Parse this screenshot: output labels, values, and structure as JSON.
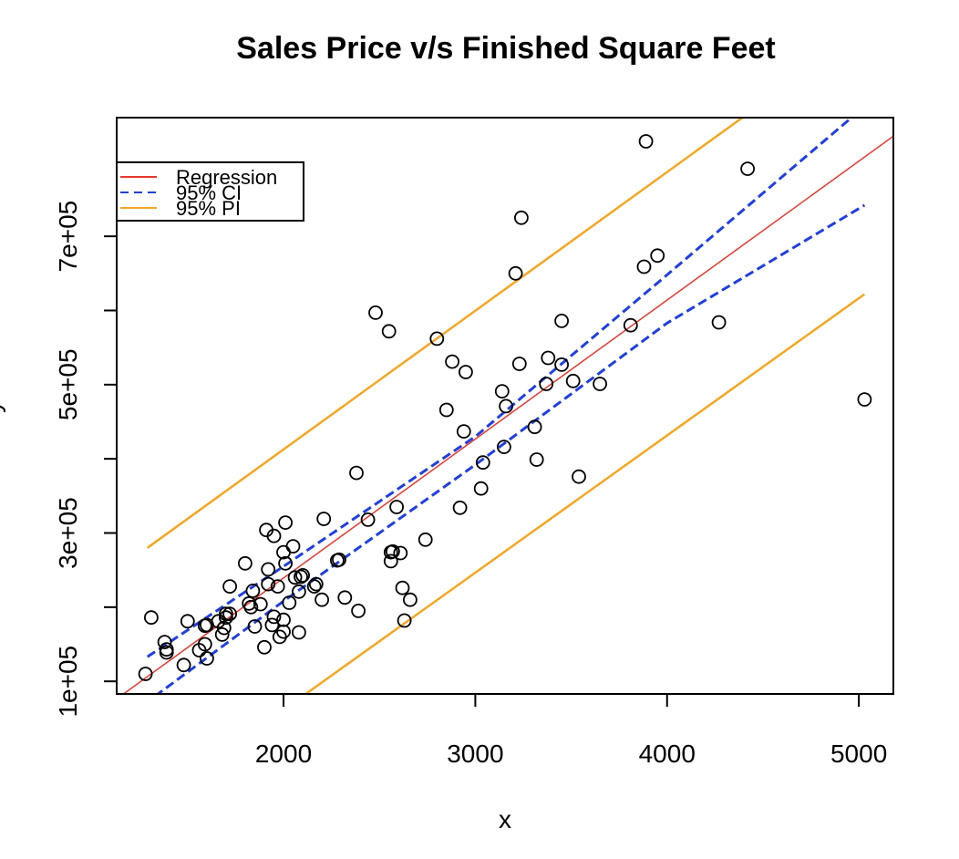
{
  "chart_data": {
    "type": "scatter",
    "title": "Sales Price v/s Finished Square Feet",
    "xlabel": "x",
    "ylabel": "y",
    "xlim": [
      1130,
      5180
    ],
    "ylim": [
      83000,
      860000
    ],
    "x_ticks": [
      2000,
      3000,
      4000,
      5000
    ],
    "x_tick_labels": [
      "2000",
      "3000",
      "4000",
      "5000"
    ],
    "y_ticks": [
      100000,
      200000,
      300000,
      400000,
      500000,
      600000,
      700000
    ],
    "y_tick_labels": [
      "1e+05",
      "3e+05",
      "5e+05",
      "7e+05"
    ],
    "y_labeled_ticks": [
      100000,
      300000,
      500000,
      700000
    ],
    "legend": {
      "placement": "top-left",
      "entries": [
        {
          "label": "Regression",
          "color": "#e8392f",
          "style": "solid"
        },
        {
          "label": "95% CI",
          "color": "#1f3fe0",
          "style": "dashed"
        },
        {
          "label": "95% PI",
          "color": "#f5a623",
          "style": "solid"
        }
      ]
    },
    "regression": {
      "x0": 1150,
      "y0": 80000,
      "x1": 5180,
      "y1": 835000
    },
    "ci_upper": [
      [
        1290,
        133000
      ],
      [
        2000,
        255000
      ],
      [
        3000,
        430000
      ],
      [
        4000,
        648000
      ],
      [
        5030,
        875000
      ]
    ],
    "ci_lower": [
      [
        1330,
        80000
      ],
      [
        2000,
        208000
      ],
      [
        3000,
        392000
      ],
      [
        4000,
        583000
      ],
      [
        5030,
        742000
      ]
    ],
    "pi_upper": [
      [
        1290,
        280000
      ],
      [
        4500,
        880000
      ]
    ],
    "pi_lower": [
      [
        2100,
        80000
      ],
      [
        5030,
        622000
      ]
    ],
    "points": [
      [
        1280,
        110000
      ],
      [
        1310,
        186000
      ],
      [
        1380,
        153000
      ],
      [
        1390,
        139000
      ],
      [
        1390,
        143000
      ],
      [
        1480,
        122000
      ],
      [
        1500,
        181000
      ],
      [
        1560,
        142000
      ],
      [
        1590,
        175000
      ],
      [
        1590,
        150000
      ],
      [
        1600,
        176000
      ],
      [
        1600,
        131000
      ],
      [
        1660,
        181000
      ],
      [
        1680,
        163000
      ],
      [
        1690,
        172000
      ],
      [
        1700,
        186000
      ],
      [
        1700,
        191000
      ],
      [
        1720,
        191000
      ],
      [
        1720,
        228000
      ],
      [
        1800,
        259000
      ],
      [
        1820,
        205000
      ],
      [
        1830,
        200000
      ],
      [
        1840,
        222000
      ],
      [
        1850,
        174000
      ],
      [
        1880,
        204000
      ],
      [
        1900,
        146000
      ],
      [
        1910,
        304000
      ],
      [
        1920,
        251000
      ],
      [
        1920,
        231000
      ],
      [
        1940,
        176000
      ],
      [
        1950,
        187000
      ],
      [
        1950,
        296000
      ],
      [
        1970,
        228000
      ],
      [
        1980,
        160000
      ],
      [
        2000,
        274000
      ],
      [
        2000,
        183000
      ],
      [
        2000,
        167000
      ],
      [
        2010,
        314000
      ],
      [
        2010,
        259000
      ],
      [
        2030,
        206000
      ],
      [
        2050,
        282000
      ],
      [
        2060,
        240000
      ],
      [
        2080,
        221000
      ],
      [
        2080,
        166000
      ],
      [
        2090,
        241000
      ],
      [
        2100,
        243000
      ],
      [
        2160,
        228000
      ],
      [
        2170,
        231000
      ],
      [
        2200,
        210000
      ],
      [
        2210,
        319000
      ],
      [
        2280,
        263000
      ],
      [
        2290,
        264000
      ],
      [
        2320,
        213000
      ],
      [
        2380,
        381000
      ],
      [
        2390,
        195000
      ],
      [
        2440,
        318000
      ],
      [
        2480,
        597000
      ],
      [
        2550,
        572000
      ],
      [
        2560,
        274000
      ],
      [
        2560,
        262000
      ],
      [
        2570,
        275000
      ],
      [
        2590,
        335000
      ],
      [
        2610,
        273000
      ],
      [
        2620,
        226000
      ],
      [
        2630,
        182000
      ],
      [
        2660,
        210000
      ],
      [
        2740,
        291000
      ],
      [
        2800,
        562000
      ],
      [
        2850,
        466000
      ],
      [
        2880,
        531000
      ],
      [
        2920,
        334000
      ],
      [
        2940,
        437000
      ],
      [
        2950,
        517000
      ],
      [
        3030,
        360000
      ],
      [
        3040,
        395000
      ],
      [
        3140,
        491000
      ],
      [
        3150,
        416000
      ],
      [
        3160,
        471000
      ],
      [
        3210,
        650000
      ],
      [
        3230,
        528000
      ],
      [
        3240,
        725000
      ],
      [
        3310,
        443000
      ],
      [
        3320,
        399000
      ],
      [
        3370,
        501000
      ],
      [
        3380,
        536000
      ],
      [
        3450,
        527000
      ],
      [
        3450,
        586000
      ],
      [
        3510,
        505000
      ],
      [
        3540,
        376000
      ],
      [
        3650,
        501000
      ],
      [
        3810,
        580000
      ],
      [
        3880,
        659000
      ],
      [
        3890,
        828000
      ],
      [
        3950,
        674000
      ],
      [
        4270,
        584000
      ],
      [
        4420,
        791000
      ],
      [
        5030,
        480000
      ]
    ]
  }
}
